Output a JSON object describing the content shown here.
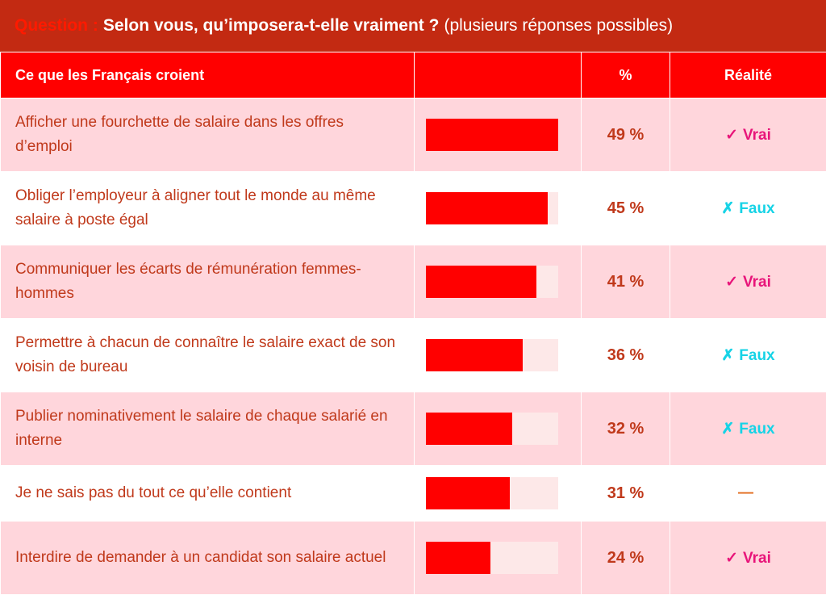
{
  "question": {
    "label": "Question :",
    "text": "Selon vous, qu’imposera-t-elle vraiment ?",
    "subtext": "(plusieurs réponses possibles)"
  },
  "header": {
    "col1": "Ce que les Français croient",
    "col2": "",
    "col3": "%",
    "col4": "Réalité"
  },
  "colors": {
    "bar": "#ff0000",
    "track": "#fde8e8",
    "vrai": "#e8157a",
    "faux": "#16d3e6",
    "neutral": "#e26a1a"
  },
  "rows": [
    {
      "label": "Afficher une fourchette de salaire dans les offres d’emploi",
      "pct_text": "49 %",
      "reality_mark": "✓",
      "reality_text": "Vrai",
      "reality": "vrai"
    },
    {
      "label": "Obliger l’employeur à aligner tout le monde au même salaire à poste égal",
      "pct_text": "45 %",
      "reality_mark": "✗",
      "reality_text": "Faux",
      "reality": "faux"
    },
    {
      "label": "Communiquer les écarts de rémunération femmes-hommes",
      "pct_text": "41 %",
      "reality_mark": "✓",
      "reality_text": "Vrai",
      "reality": "vrai"
    },
    {
      "label": "Permettre à chacun de connaître le salaire exact de son voisin de bureau",
      "pct_text": "36 %",
      "reality_mark": "✗",
      "reality_text": "Faux",
      "reality": "faux"
    },
    {
      "label": "Publier nominativement le salaire de chaque salarié en interne",
      "pct_text": "32 %",
      "reality_mark": "✗",
      "reality_text": "Faux",
      "reality": "faux"
    },
    {
      "label": "Je ne sais pas du tout ce qu’elle contient",
      "pct_text": "31 %",
      "reality_mark": "—",
      "reality_text": "",
      "reality": "neutral"
    },
    {
      "label": "Interdire de demander à un candidat son salaire actuel",
      "pct_text": "24 %",
      "reality_mark": "✓",
      "reality_text": "Vrai",
      "reality": "vrai"
    }
  ],
  "chart_data": {
    "type": "bar",
    "orientation": "horizontal",
    "categories": [
      "Afficher une fourchette de salaire dans les offres d’emploi",
      "Obliger l’employeur à aligner tout le monde au même salaire à poste égal",
      "Communiquer les écarts de rémunération femmes-hommes",
      "Permettre à chacun de connaître le salaire exact de son voisin de bureau",
      "Publier nominativement le salaire de chaque salarié en interne",
      "Je ne sais pas du tout ce qu’elle contient",
      "Interdire de demander à un candidat son salaire actuel"
    ],
    "values": [
      49,
      45,
      41,
      36,
      32,
      31,
      24
    ],
    "xlim": [
      0,
      49
    ],
    "title": "",
    "xlabel": "",
    "ylabel": ""
  }
}
